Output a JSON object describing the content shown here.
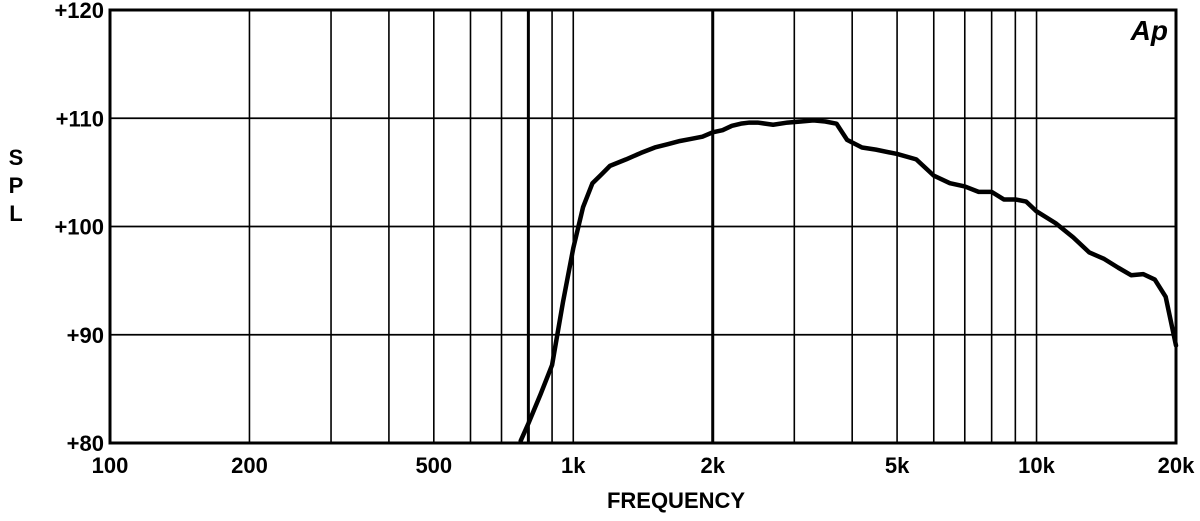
{
  "chart_data": {
    "type": "line",
    "xlabel": "FREQUENCY",
    "ylabel": "S P L",
    "x_scale": "log",
    "xlim": [
      100,
      20000
    ],
    "ylim": [
      80,
      120
    ],
    "grid": true,
    "logo": "Ap",
    "x_ticks": [
      {
        "value": 100,
        "label": "100"
      },
      {
        "value": 200,
        "label": "200"
      },
      {
        "value": 500,
        "label": "500"
      },
      {
        "value": 1000,
        "label": "1k"
      },
      {
        "value": 2000,
        "label": "2k"
      },
      {
        "value": 5000,
        "label": "5k"
      },
      {
        "value": 10000,
        "label": "10k"
      },
      {
        "value": 20000,
        "label": "20k"
      }
    ],
    "y_ticks": [
      {
        "value": 80,
        "label": "+80"
      },
      {
        "value": 90,
        "label": "+90"
      },
      {
        "value": 100,
        "label": "+100"
      },
      {
        "value": 110,
        "label": "+110"
      },
      {
        "value": 120,
        "label": "+120"
      }
    ],
    "series": [
      {
        "color": "#000000",
        "x": [
          770,
          800,
          850,
          900,
          950,
          1000,
          1050,
          1100,
          1150,
          1200,
          1300,
          1400,
          1500,
          1600,
          1700,
          1800,
          1900,
          2000,
          2100,
          2200,
          2300,
          2400,
          2500,
          2700,
          2900,
          3100,
          3300,
          3500,
          3700,
          3900,
          4200,
          4500,
          5000,
          5500,
          6000,
          6500,
          7000,
          7500,
          8000,
          8500,
          9000,
          9500,
          10000,
          11000,
          12000,
          13000,
          14000,
          15000,
          16000,
          17000,
          18000,
          19000,
          20000
        ],
        "y": [
          80.2,
          81.8,
          84.5,
          87.2,
          93.0,
          98.0,
          101.8,
          104.0,
          104.8,
          105.6,
          106.2,
          106.8,
          107.3,
          107.6,
          107.9,
          108.1,
          108.3,
          108.7,
          108.9,
          109.3,
          109.5,
          109.6,
          109.6,
          109.4,
          109.6,
          109.7,
          109.8,
          109.7,
          109.5,
          108.0,
          107.3,
          107.1,
          106.7,
          106.2,
          104.7,
          104.0,
          103.7,
          103.2,
          103.2,
          102.5,
          102.5,
          102.3,
          101.4,
          100.3,
          99.0,
          97.6,
          97.0,
          96.2,
          95.5,
          95.6,
          95.1,
          93.5,
          89.0
        ]
      }
    ]
  }
}
